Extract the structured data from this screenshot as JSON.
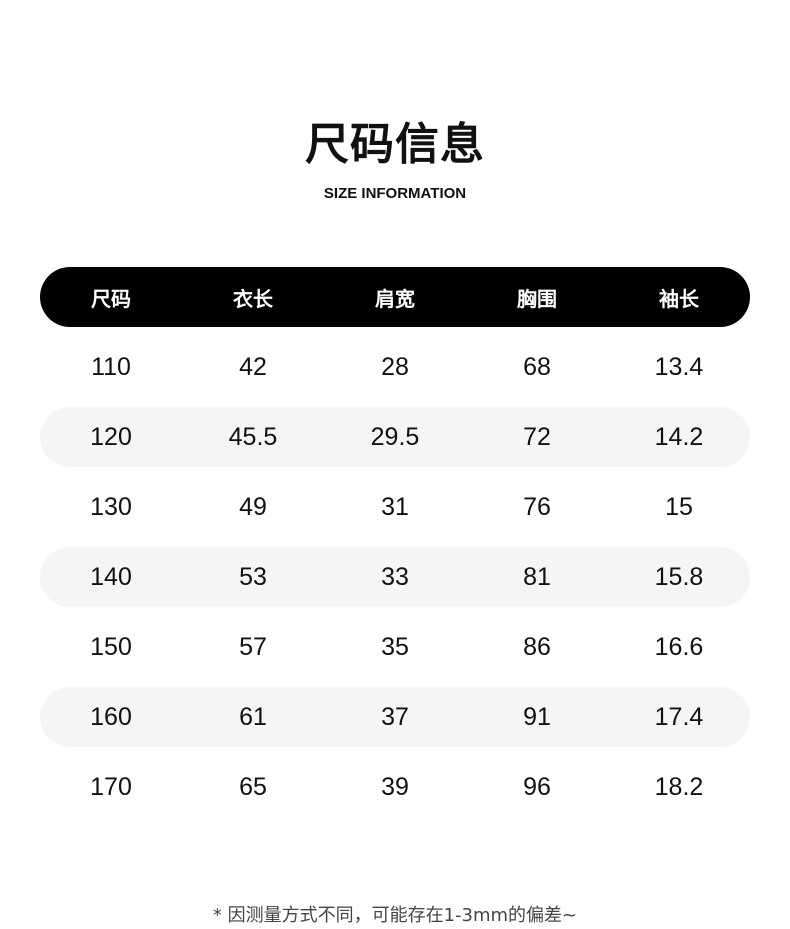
{
  "title": "尺码信息",
  "subtitle": "SIZE INFORMATION",
  "table": {
    "headers": [
      "尺码",
      "衣长",
      "肩宽",
      "胸围",
      "袖长"
    ],
    "rows": [
      [
        "110",
        "42",
        "28",
        "68",
        "13.4"
      ],
      [
        "120",
        "45.5",
        "29.5",
        "72",
        "14.2"
      ],
      [
        "130",
        "49",
        "31",
        "76",
        "15"
      ],
      [
        "140",
        "53",
        "33",
        "81",
        "15.8"
      ],
      [
        "150",
        "57",
        "35",
        "86",
        "16.6"
      ],
      [
        "160",
        "61",
        "37",
        "91",
        "17.4"
      ],
      [
        "170",
        "65",
        "39",
        "96",
        "18.2"
      ]
    ]
  },
  "footnote": "* 因测量方式不同，可能存在1-3mm的偏差~",
  "colors": {
    "header_bg": "#000000",
    "stripe_bg": "#f5f5f5"
  }
}
